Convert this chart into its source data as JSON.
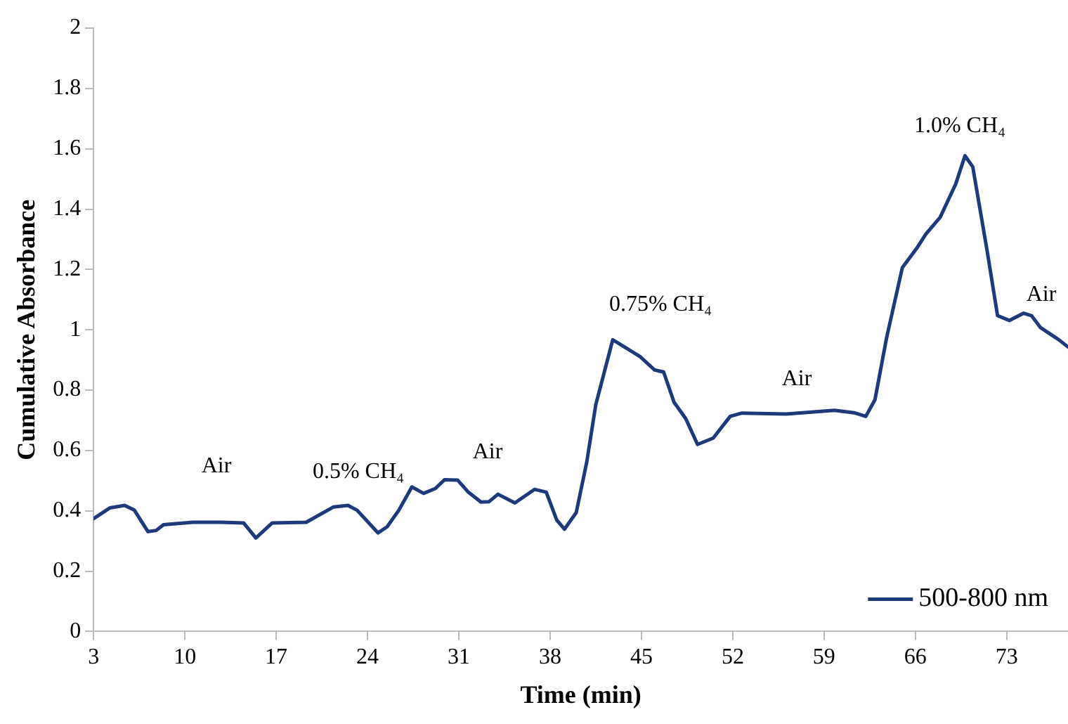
{
  "chart_data": {
    "type": "line",
    "xlabel": "Time (min)",
    "ylabel": "Cumulative Absorbance",
    "x": [
      3,
      4.26,
      5.38,
      6.13,
      7.17,
      7.8,
      8.36,
      10.6,
      12.8,
      14.5,
      15.44,
      16.7,
      19.3,
      21.4,
      22.5,
      23.2,
      24.8,
      25.5,
      26.4,
      27.4,
      28.3,
      29.2,
      29.9,
      30.9,
      31.7,
      32.7,
      33.3,
      34.0,
      35.3,
      36.8,
      37.7,
      38.5,
      39.1,
      40.0,
      40.8,
      41.5,
      42.8,
      43.7,
      44.9,
      46.0,
      46.7,
      47.5,
      48.4,
      49.3,
      50.5,
      51.8,
      52.7,
      56.1,
      59.8,
      61.3,
      62.2,
      62.9,
      63.8,
      65.0,
      66.1,
      66.8,
      67.9,
      69.1,
      69.8,
      70.4,
      71.5,
      72.3,
      73.2,
      74.3,
      74.9,
      75.6,
      77.0,
      77.7
    ],
    "series": [
      {
        "name": "500-800 nm",
        "color": "#1f3a7a",
        "values": [
          0.374,
          0.41,
          0.418,
          0.402,
          0.331,
          0.335,
          0.354,
          0.362,
          0.362,
          0.36,
          0.31,
          0.36,
          0.362,
          0.413,
          0.418,
          0.402,
          0.327,
          0.347,
          0.402,
          0.479,
          0.458,
          0.474,
          0.503,
          0.502,
          0.463,
          0.429,
          0.43,
          0.455,
          0.426,
          0.471,
          0.462,
          0.37,
          0.339,
          0.394,
          0.56,
          0.752,
          0.967,
          0.943,
          0.911,
          0.867,
          0.86,
          0.76,
          0.705,
          0.62,
          0.641,
          0.713,
          0.724,
          0.721,
          0.733,
          0.725,
          0.713,
          0.768,
          0.975,
          1.206,
          1.27,
          1.317,
          1.373,
          1.484,
          1.577,
          1.54,
          1.262,
          1.047,
          1.031,
          1.055,
          1.047,
          1.007,
          0.967,
          0.943
        ]
      }
    ],
    "xlim": [
      3,
      77.7
    ],
    "xticks": [
      3,
      10,
      17,
      24,
      31,
      38,
      45,
      52,
      59,
      66,
      73
    ],
    "ylim": [
      0,
      2
    ],
    "yticks": [
      0,
      0.2,
      0.4,
      0.6,
      0.8,
      1,
      1.2,
      1.4,
      1.6,
      1.8,
      2
    ],
    "grid": false,
    "legend": "bottom right",
    "marker": "none",
    "line_style": "solid",
    "annotations": [
      "Air",
      "0.5% CH₄",
      "Air",
      "0.75% CH₄",
      "Air",
      "1.0% CH₄",
      "Air"
    ]
  }
}
